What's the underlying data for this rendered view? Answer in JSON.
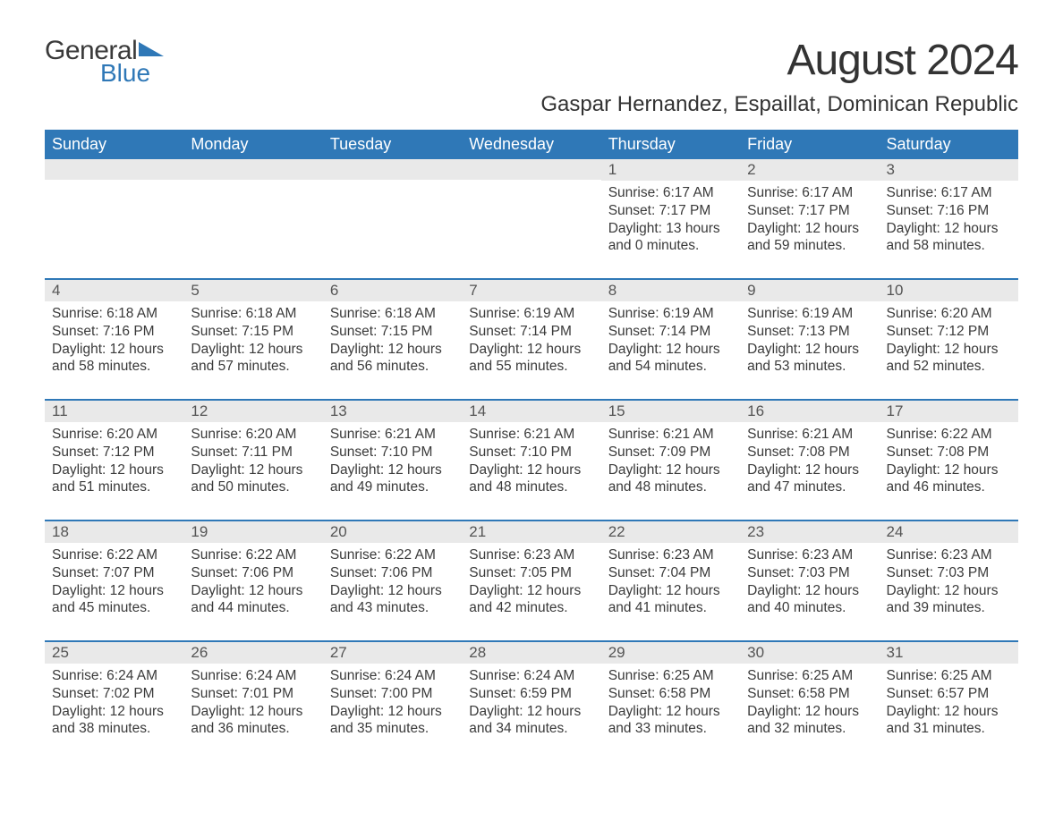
{
  "logo": {
    "word1": "General",
    "word2": "Blue",
    "word1_color": "#3a3a3a",
    "word2_color": "#2f78b7",
    "triangle_color": "#2f78b7"
  },
  "title": "August 2024",
  "location": "Gaspar Hernandez, Espaillat, Dominican Republic",
  "colors": {
    "header_bg": "#2f78b7",
    "header_text": "#ffffff",
    "daybar_bg": "#e9e9e9",
    "daybar_text": "#555555",
    "body_text": "#3a3a3a",
    "row_border": "#2f78b7",
    "page_bg": "#ffffff"
  },
  "fonts": {
    "title_size_pt": 36,
    "location_size_pt": 18,
    "weekday_size_pt": 13.5,
    "daynum_size_pt": 13,
    "body_size_pt": 11.5,
    "family": "Arial"
  },
  "weekdays": [
    "Sunday",
    "Monday",
    "Tuesday",
    "Wednesday",
    "Thursday",
    "Friday",
    "Saturday"
  ],
  "weeks": [
    [
      null,
      null,
      null,
      null,
      {
        "day": "1",
        "sunrise": "Sunrise: 6:17 AM",
        "sunset": "Sunset: 7:17 PM",
        "daylight": "Daylight: 13 hours and 0 minutes."
      },
      {
        "day": "2",
        "sunrise": "Sunrise: 6:17 AM",
        "sunset": "Sunset: 7:17 PM",
        "daylight": "Daylight: 12 hours and 59 minutes."
      },
      {
        "day": "3",
        "sunrise": "Sunrise: 6:17 AM",
        "sunset": "Sunset: 7:16 PM",
        "daylight": "Daylight: 12 hours and 58 minutes."
      }
    ],
    [
      {
        "day": "4",
        "sunrise": "Sunrise: 6:18 AM",
        "sunset": "Sunset: 7:16 PM",
        "daylight": "Daylight: 12 hours and 58 minutes."
      },
      {
        "day": "5",
        "sunrise": "Sunrise: 6:18 AM",
        "sunset": "Sunset: 7:15 PM",
        "daylight": "Daylight: 12 hours and 57 minutes."
      },
      {
        "day": "6",
        "sunrise": "Sunrise: 6:18 AM",
        "sunset": "Sunset: 7:15 PM",
        "daylight": "Daylight: 12 hours and 56 minutes."
      },
      {
        "day": "7",
        "sunrise": "Sunrise: 6:19 AM",
        "sunset": "Sunset: 7:14 PM",
        "daylight": "Daylight: 12 hours and 55 minutes."
      },
      {
        "day": "8",
        "sunrise": "Sunrise: 6:19 AM",
        "sunset": "Sunset: 7:14 PM",
        "daylight": "Daylight: 12 hours and 54 minutes."
      },
      {
        "day": "9",
        "sunrise": "Sunrise: 6:19 AM",
        "sunset": "Sunset: 7:13 PM",
        "daylight": "Daylight: 12 hours and 53 minutes."
      },
      {
        "day": "10",
        "sunrise": "Sunrise: 6:20 AM",
        "sunset": "Sunset: 7:12 PM",
        "daylight": "Daylight: 12 hours and 52 minutes."
      }
    ],
    [
      {
        "day": "11",
        "sunrise": "Sunrise: 6:20 AM",
        "sunset": "Sunset: 7:12 PM",
        "daylight": "Daylight: 12 hours and 51 minutes."
      },
      {
        "day": "12",
        "sunrise": "Sunrise: 6:20 AM",
        "sunset": "Sunset: 7:11 PM",
        "daylight": "Daylight: 12 hours and 50 minutes."
      },
      {
        "day": "13",
        "sunrise": "Sunrise: 6:21 AM",
        "sunset": "Sunset: 7:10 PM",
        "daylight": "Daylight: 12 hours and 49 minutes."
      },
      {
        "day": "14",
        "sunrise": "Sunrise: 6:21 AM",
        "sunset": "Sunset: 7:10 PM",
        "daylight": "Daylight: 12 hours and 48 minutes."
      },
      {
        "day": "15",
        "sunrise": "Sunrise: 6:21 AM",
        "sunset": "Sunset: 7:09 PM",
        "daylight": "Daylight: 12 hours and 48 minutes."
      },
      {
        "day": "16",
        "sunrise": "Sunrise: 6:21 AM",
        "sunset": "Sunset: 7:08 PM",
        "daylight": "Daylight: 12 hours and 47 minutes."
      },
      {
        "day": "17",
        "sunrise": "Sunrise: 6:22 AM",
        "sunset": "Sunset: 7:08 PM",
        "daylight": "Daylight: 12 hours and 46 minutes."
      }
    ],
    [
      {
        "day": "18",
        "sunrise": "Sunrise: 6:22 AM",
        "sunset": "Sunset: 7:07 PM",
        "daylight": "Daylight: 12 hours and 45 minutes."
      },
      {
        "day": "19",
        "sunrise": "Sunrise: 6:22 AM",
        "sunset": "Sunset: 7:06 PM",
        "daylight": "Daylight: 12 hours and 44 minutes."
      },
      {
        "day": "20",
        "sunrise": "Sunrise: 6:22 AM",
        "sunset": "Sunset: 7:06 PM",
        "daylight": "Daylight: 12 hours and 43 minutes."
      },
      {
        "day": "21",
        "sunrise": "Sunrise: 6:23 AM",
        "sunset": "Sunset: 7:05 PM",
        "daylight": "Daylight: 12 hours and 42 minutes."
      },
      {
        "day": "22",
        "sunrise": "Sunrise: 6:23 AM",
        "sunset": "Sunset: 7:04 PM",
        "daylight": "Daylight: 12 hours and 41 minutes."
      },
      {
        "day": "23",
        "sunrise": "Sunrise: 6:23 AM",
        "sunset": "Sunset: 7:03 PM",
        "daylight": "Daylight: 12 hours and 40 minutes."
      },
      {
        "day": "24",
        "sunrise": "Sunrise: 6:23 AM",
        "sunset": "Sunset: 7:03 PM",
        "daylight": "Daylight: 12 hours and 39 minutes."
      }
    ],
    [
      {
        "day": "25",
        "sunrise": "Sunrise: 6:24 AM",
        "sunset": "Sunset: 7:02 PM",
        "daylight": "Daylight: 12 hours and 38 minutes."
      },
      {
        "day": "26",
        "sunrise": "Sunrise: 6:24 AM",
        "sunset": "Sunset: 7:01 PM",
        "daylight": "Daylight: 12 hours and 36 minutes."
      },
      {
        "day": "27",
        "sunrise": "Sunrise: 6:24 AM",
        "sunset": "Sunset: 7:00 PM",
        "daylight": "Daylight: 12 hours and 35 minutes."
      },
      {
        "day": "28",
        "sunrise": "Sunrise: 6:24 AM",
        "sunset": "Sunset: 6:59 PM",
        "daylight": "Daylight: 12 hours and 34 minutes."
      },
      {
        "day": "29",
        "sunrise": "Sunrise: 6:25 AM",
        "sunset": "Sunset: 6:58 PM",
        "daylight": "Daylight: 12 hours and 33 minutes."
      },
      {
        "day": "30",
        "sunrise": "Sunrise: 6:25 AM",
        "sunset": "Sunset: 6:58 PM",
        "daylight": "Daylight: 12 hours and 32 minutes."
      },
      {
        "day": "31",
        "sunrise": "Sunrise: 6:25 AM",
        "sunset": "Sunset: 6:57 PM",
        "daylight": "Daylight: 12 hours and 31 minutes."
      }
    ]
  ]
}
